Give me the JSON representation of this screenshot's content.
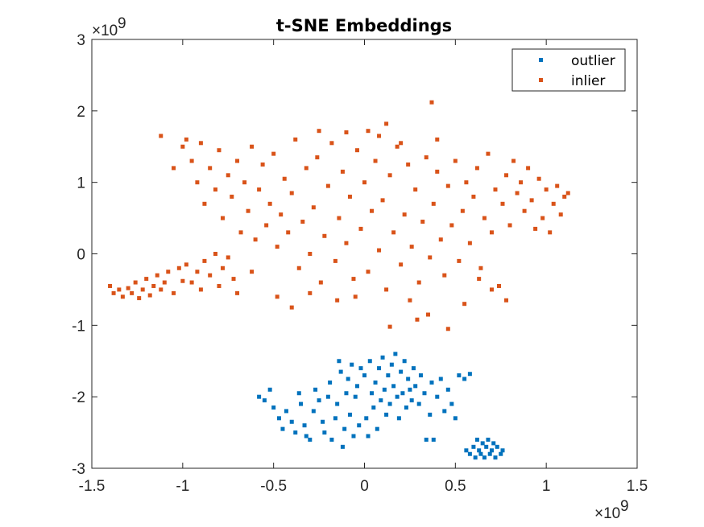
{
  "chart_data": {
    "type": "scatter",
    "title": "t-SNE Embeddings",
    "xlabel": "",
    "ylabel": "",
    "xlim": [
      -1.5,
      1.5
    ],
    "ylim": [
      -3,
      3
    ],
    "x_ticks": [
      "-1.5",
      "-1",
      "-0.5",
      "0",
      "0.5",
      "1",
      "1.5"
    ],
    "y_ticks": [
      "-3",
      "-2",
      "-1",
      "0",
      "1",
      "2",
      "3"
    ],
    "x_exponent": {
      "base": "×10",
      "power": "9"
    },
    "y_exponent": {
      "base": "×10",
      "power": "9"
    },
    "grid": false,
    "legend_position": "top-right",
    "series": [
      {
        "name": "outlier",
        "color": "#0072BD",
        "points": [
          [
            -0.58,
            -2.0
          ],
          [
            -0.55,
            -2.05
          ],
          [
            -0.52,
            -1.9
          ],
          [
            -0.5,
            -2.15
          ],
          [
            -0.47,
            -2.3
          ],
          [
            -0.45,
            -2.45
          ],
          [
            -0.43,
            -2.2
          ],
          [
            -0.4,
            -2.35
          ],
          [
            -0.38,
            -2.5
          ],
          [
            -0.36,
            -1.95
          ],
          [
            -0.35,
            -2.1
          ],
          [
            -0.33,
            -2.4
          ],
          [
            -0.32,
            -2.55
          ],
          [
            -0.3,
            -2.6
          ],
          [
            -0.28,
            -2.2
          ],
          [
            -0.27,
            -1.9
          ],
          [
            -0.25,
            -2.05
          ],
          [
            -0.23,
            -2.35
          ],
          [
            -0.22,
            -2.5
          ],
          [
            -0.2,
            -2.0
          ],
          [
            -0.19,
            -1.8
          ],
          [
            -0.18,
            -2.6
          ],
          [
            -0.16,
            -2.3
          ],
          [
            -0.15,
            -2.1
          ],
          [
            -0.14,
            -1.5
          ],
          [
            -0.13,
            -1.65
          ],
          [
            -0.12,
            -2.7
          ],
          [
            -0.11,
            -2.45
          ],
          [
            -0.1,
            -1.95
          ],
          [
            -0.09,
            -1.75
          ],
          [
            -0.08,
            -2.25
          ],
          [
            -0.07,
            -1.55
          ],
          [
            -0.06,
            -2.55
          ],
          [
            -0.05,
            -2.0
          ],
          [
            -0.04,
            -1.85
          ],
          [
            -0.03,
            -2.4
          ],
          [
            -0.02,
            -1.6
          ],
          [
            0.0,
            -1.7
          ],
          [
            0.01,
            -2.3
          ],
          [
            0.02,
            -2.55
          ],
          [
            0.03,
            -1.5
          ],
          [
            0.04,
            -1.95
          ],
          [
            0.05,
            -2.15
          ],
          [
            0.06,
            -1.8
          ],
          [
            0.07,
            -2.45
          ],
          [
            0.08,
            -1.6
          ],
          [
            0.09,
            -2.05
          ],
          [
            0.1,
            -1.45
          ],
          [
            0.11,
            -1.9
          ],
          [
            0.12,
            -2.25
          ],
          [
            0.13,
            -1.7
          ],
          [
            0.14,
            -2.1
          ],
          [
            0.15,
            -1.55
          ],
          [
            0.16,
            -1.85
          ],
          [
            0.17,
            -1.4
          ],
          [
            0.18,
            -2.0
          ],
          [
            0.19,
            -2.3
          ],
          [
            0.2,
            -1.65
          ],
          [
            0.21,
            -1.95
          ],
          [
            0.22,
            -1.5
          ],
          [
            0.23,
            -2.15
          ],
          [
            0.24,
            -1.75
          ],
          [
            0.25,
            -1.9
          ],
          [
            0.26,
            -2.05
          ],
          [
            0.27,
            -1.6
          ],
          [
            0.28,
            -1.85
          ],
          [
            0.3,
            -2.1
          ],
          [
            0.31,
            -1.7
          ],
          [
            0.33,
            -1.95
          ],
          [
            0.34,
            -2.6
          ],
          [
            0.36,
            -2.25
          ],
          [
            0.37,
            -1.8
          ],
          [
            0.38,
            -2.6
          ],
          [
            0.4,
            -2.0
          ],
          [
            0.42,
            -1.75
          ],
          [
            0.44,
            -2.2
          ],
          [
            0.46,
            -1.9
          ],
          [
            0.48,
            -2.1
          ],
          [
            0.5,
            -2.3
          ],
          [
            0.52,
            -1.7
          ],
          [
            0.55,
            -1.75
          ],
          [
            0.58,
            -1.68
          ],
          [
            0.56,
            -2.75
          ],
          [
            0.58,
            -2.8
          ],
          [
            0.6,
            -2.7
          ],
          [
            0.61,
            -2.85
          ],
          [
            0.62,
            -2.6
          ],
          [
            0.63,
            -2.75
          ],
          [
            0.64,
            -2.8
          ],
          [
            0.65,
            -2.65
          ],
          [
            0.66,
            -2.85
          ],
          [
            0.67,
            -2.7
          ],
          [
            0.68,
            -2.6
          ],
          [
            0.69,
            -2.8
          ],
          [
            0.7,
            -2.75
          ],
          [
            0.71,
            -2.65
          ],
          [
            0.72,
            -2.85
          ],
          [
            0.73,
            -2.7
          ],
          [
            0.75,
            -2.8
          ],
          [
            0.76,
            -2.75
          ]
        ]
      },
      {
        "name": "inlier",
        "color": "#D95319",
        "points": [
          [
            -1.4,
            -0.45
          ],
          [
            -1.38,
            -0.55
          ],
          [
            -1.35,
            -0.5
          ],
          [
            -1.33,
            -0.6
          ],
          [
            -1.3,
            -0.48
          ],
          [
            -1.28,
            -0.55
          ],
          [
            -1.26,
            -0.4
          ],
          [
            -1.24,
            -0.62
          ],
          [
            -1.22,
            -0.5
          ],
          [
            -1.2,
            -0.35
          ],
          [
            -1.18,
            -0.58
          ],
          [
            -1.16,
            -0.45
          ],
          [
            -1.14,
            -0.3
          ],
          [
            -1.12,
            -0.5
          ],
          [
            -1.1,
            -0.4
          ],
          [
            -1.08,
            -0.25
          ],
          [
            -1.05,
            -0.55
          ],
          [
            -1.02,
            -0.2
          ],
          [
            -1.0,
            -0.38
          ],
          [
            -0.98,
            -0.15
          ],
          [
            -0.95,
            -0.4
          ],
          [
            -0.92,
            -0.25
          ],
          [
            -0.9,
            -0.5
          ],
          [
            -0.88,
            -0.1
          ],
          [
            -0.85,
            -0.3
          ],
          [
            -0.82,
            0.0
          ],
          [
            -0.8,
            -0.45
          ],
          [
            -0.78,
            -0.2
          ],
          [
            -0.75,
            -0.05
          ],
          [
            -0.72,
            -0.35
          ],
          [
            -1.12,
            1.65
          ],
          [
            -1.05,
            1.2
          ],
          [
            -1.0,
            1.5
          ],
          [
            -0.98,
            1.6
          ],
          [
            -0.95,
            1.3
          ],
          [
            -0.92,
            1.0
          ],
          [
            -0.9,
            1.55
          ],
          [
            -0.88,
            0.7
          ],
          [
            -0.85,
            1.2
          ],
          [
            -0.82,
            0.9
          ],
          [
            -0.8,
            1.45
          ],
          [
            -0.78,
            0.5
          ],
          [
            -0.75,
            1.1
          ],
          [
            -0.73,
            0.8
          ],
          [
            -0.7,
            1.3
          ],
          [
            -0.68,
            0.3
          ],
          [
            -0.66,
            1.0
          ],
          [
            -0.64,
            0.6
          ],
          [
            -0.62,
            1.5
          ],
          [
            -0.6,
            0.2
          ],
          [
            -0.58,
            0.9
          ],
          [
            -0.56,
            1.25
          ],
          [
            -0.54,
            0.4
          ],
          [
            -0.52,
            0.7
          ],
          [
            -0.5,
            1.4
          ],
          [
            -0.48,
            0.1
          ],
          [
            -0.46,
            0.55
          ],
          [
            -0.44,
            1.05
          ],
          [
            -0.42,
            0.3
          ],
          [
            -0.4,
            0.85
          ],
          [
            -0.38,
            1.6
          ],
          [
            -0.36,
            -0.2
          ],
          [
            -0.34,
            0.45
          ],
          [
            -0.32,
            1.2
          ],
          [
            -0.3,
            0.0
          ],
          [
            -0.28,
            0.65
          ],
          [
            -0.26,
            1.35
          ],
          [
            -0.24,
            -0.4
          ],
          [
            -0.22,
            0.25
          ],
          [
            -0.2,
            0.95
          ],
          [
            -0.18,
            1.55
          ],
          [
            -0.16,
            -0.1
          ],
          [
            -0.14,
            0.5
          ],
          [
            -0.12,
            1.15
          ],
          [
            -0.1,
            0.15
          ],
          [
            -0.08,
            0.8
          ],
          [
            -0.06,
            -0.35
          ],
          [
            -0.04,
            1.45
          ],
          [
            -0.02,
            0.35
          ],
          [
            0.0,
            1.0
          ],
          [
            0.02,
            -0.25
          ],
          [
            0.04,
            0.6
          ],
          [
            0.06,
            1.3
          ],
          [
            0.08,
            0.05
          ],
          [
            0.1,
            0.75
          ],
          [
            0.12,
            -0.5
          ],
          [
            0.14,
            1.1
          ],
          [
            0.16,
            0.3
          ],
          [
            0.18,
            1.5
          ],
          [
            0.2,
            -0.15
          ],
          [
            0.22,
            0.55
          ],
          [
            0.24,
            1.25
          ],
          [
            0.26,
            0.1
          ],
          [
            0.28,
            0.9
          ],
          [
            0.3,
            -0.4
          ],
          [
            0.32,
            0.45
          ],
          [
            0.34,
            1.35
          ],
          [
            0.36,
            -0.05
          ],
          [
            0.38,
            0.7
          ],
          [
            0.4,
            1.15
          ],
          [
            0.42,
            0.2
          ],
          [
            0.44,
            -0.3
          ],
          [
            0.46,
            0.95
          ],
          [
            0.48,
            0.4
          ],
          [
            0.5,
            1.3
          ],
          [
            0.52,
            -0.1
          ],
          [
            0.54,
            0.6
          ],
          [
            0.56,
            1.0
          ],
          [
            0.58,
            0.15
          ],
          [
            0.6,
            0.8
          ],
          [
            0.62,
            1.2
          ],
          [
            0.64,
            -0.2
          ],
          [
            0.66,
            0.5
          ],
          [
            0.68,
            1.4
          ],
          [
            0.7,
            0.3
          ],
          [
            0.72,
            0.9
          ],
          [
            0.74,
            -0.45
          ],
          [
            0.76,
            0.7
          ],
          [
            0.78,
            1.1
          ],
          [
            0.8,
            0.4
          ],
          [
            0.82,
            1.3
          ],
          [
            0.84,
            0.85
          ],
          [
            0.86,
            1.0
          ],
          [
            0.88,
            0.6
          ],
          [
            0.9,
            1.2
          ],
          [
            0.92,
            0.75
          ],
          [
            0.94,
            0.35
          ],
          [
            0.96,
            1.05
          ],
          [
            0.98,
            0.5
          ],
          [
            1.0,
            0.9
          ],
          [
            1.02,
            0.3
          ],
          [
            1.04,
            0.7
          ],
          [
            1.06,
            0.95
          ],
          [
            1.08,
            0.55
          ],
          [
            1.1,
            0.8
          ],
          [
            1.12,
            0.85
          ],
          [
            0.37,
            2.12
          ],
          [
            0.02,
            1.72
          ],
          [
            0.08,
            1.65
          ],
          [
            0.12,
            1.82
          ],
          [
            -0.25,
            1.72
          ],
          [
            -0.1,
            1.7
          ],
          [
            0.2,
            1.55
          ],
          [
            0.4,
            1.6
          ],
          [
            -0.15,
            -0.65
          ],
          [
            -0.4,
            -0.75
          ],
          [
            0.35,
            -0.85
          ],
          [
            0.46,
            -1.05
          ],
          [
            0.29,
            -0.92
          ],
          [
            0.14,
            -1.02
          ],
          [
            0.55,
            -0.7
          ],
          [
            0.78,
            -0.65
          ],
          [
            0.7,
            -0.5
          ],
          [
            0.63,
            -0.35
          ],
          [
            -0.62,
            -0.25
          ],
          [
            -0.7,
            -0.55
          ],
          [
            -0.48,
            -0.6
          ],
          [
            -0.3,
            -0.55
          ],
          [
            -0.05,
            -0.6
          ],
          [
            0.25,
            -0.65
          ]
        ]
      }
    ]
  }
}
